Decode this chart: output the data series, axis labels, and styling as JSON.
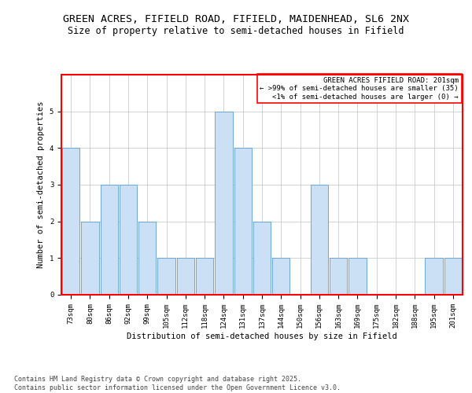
{
  "title_line1": "GREEN ACRES, FIFIELD ROAD, FIFIELD, MAIDENHEAD, SL6 2NX",
  "title_line2": "Size of property relative to semi-detached houses in Fifield",
  "xlabel": "Distribution of semi-detached houses by size in Fifield",
  "ylabel": "Number of semi-detached properties",
  "categories": [
    "73sqm",
    "80sqm",
    "86sqm",
    "92sqm",
    "99sqm",
    "105sqm",
    "112sqm",
    "118sqm",
    "124sqm",
    "131sqm",
    "137sqm",
    "144sqm",
    "150sqm",
    "156sqm",
    "163sqm",
    "169sqm",
    "175sqm",
    "182sqm",
    "188sqm",
    "195sqm",
    "201sqm"
  ],
  "values": [
    4,
    2,
    3,
    3,
    2,
    1,
    1,
    1,
    5,
    4,
    2,
    1,
    0,
    3,
    1,
    1,
    0,
    0,
    0,
    1,
    1
  ],
  "bar_color": "#cce0f5",
  "bar_edge_color": "#5b9bd5",
  "legend_title": "GREEN ACRES FIFIELD ROAD: 201sqm",
  "legend_line1": "← >99% of semi-detached houses are smaller (35)",
  "legend_line2": "<1% of semi-detached houses are larger (0) →",
  "ylim": [
    0,
    6
  ],
  "yticks": [
    0,
    1,
    2,
    3,
    4,
    5
  ],
  "footer": "Contains HM Land Registry data © Crown copyright and database right 2025.\nContains public sector information licensed under the Open Government Licence v3.0.",
  "bg_color": "#ffffff",
  "grid_color": "#cccccc",
  "title_fontsize": 9.5,
  "subtitle_fontsize": 8.5,
  "axis_label_fontsize": 7.5,
  "tick_fontsize": 6.5,
  "legend_fontsize": 6.5,
  "footer_fontsize": 6
}
